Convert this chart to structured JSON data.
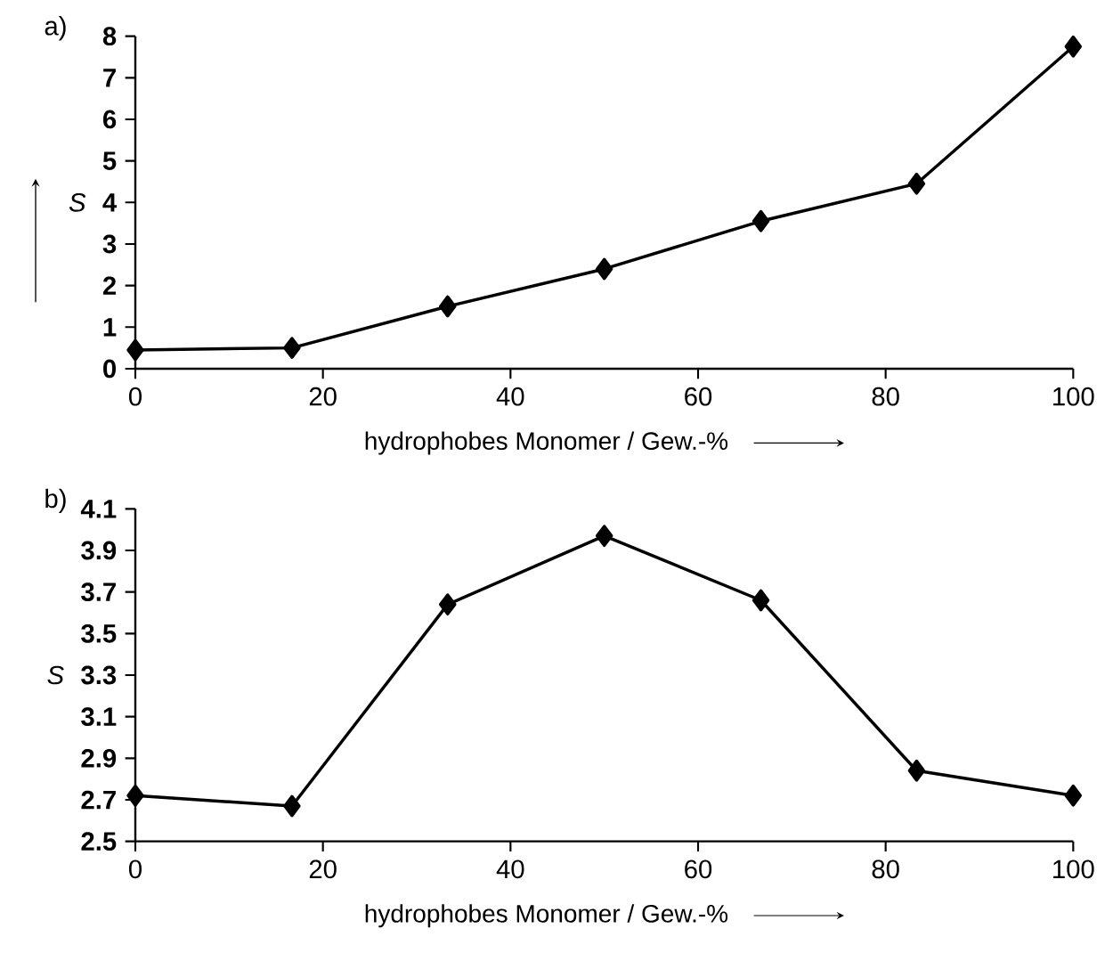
{
  "chart_data": [
    {
      "type": "line",
      "title": "a)",
      "xlabel": "hydrophobes Monomer / Gew.-%",
      "ylabel": "S",
      "marker": "diamond",
      "line_style": "solid",
      "xlim": [
        0,
        100
      ],
      "xticks": [
        0,
        20,
        40,
        60,
        80,
        100
      ],
      "ylim": [
        0,
        8
      ],
      "yticks": [
        0,
        1,
        2,
        3,
        4,
        5,
        6,
        7,
        8
      ],
      "x": [
        0,
        16.7,
        33.3,
        50,
        66.7,
        83.3,
        100
      ],
      "series": [
        {
          "color": "#000000",
          "values": [
            0.45,
            0.5,
            1.5,
            2.4,
            3.55,
            4.45,
            7.75
          ]
        }
      ]
    },
    {
      "type": "line",
      "title": "b)",
      "xlabel": "hydrophobes Monomer / Gew.-%",
      "ylabel": "S",
      "marker": "diamond",
      "line_style": "solid",
      "xlim": [
        0,
        100
      ],
      "xticks": [
        0,
        20,
        40,
        60,
        80,
        100
      ],
      "ylim": [
        2.5,
        4.1
      ],
      "yticks": [
        {
          "value": 2.5,
          "label": "2.5"
        },
        {
          "value": 2.7,
          "label": "2.7"
        },
        {
          "value": 2.9,
          "label": "2.9"
        },
        {
          "value": 3.1,
          "label": "3.1"
        },
        {
          "value": 3.3,
          "label": "3.3"
        },
        {
          "value": 3.5,
          "label": "3.5"
        },
        {
          "value": 3.7,
          "label": "3.7"
        },
        {
          "value": 3.9,
          "label": "3.9"
        },
        {
          "value": 4.1,
          "label": "4.1"
        }
      ],
      "x": [
        0,
        16.7,
        33.3,
        50,
        66.7,
        83.3,
        100
      ],
      "series": [
        {
          "color": "#000000",
          "values": [
            2.72,
            2.67,
            3.64,
            3.97,
            3.66,
            2.84,
            2.72
          ]
        }
      ]
    }
  ]
}
